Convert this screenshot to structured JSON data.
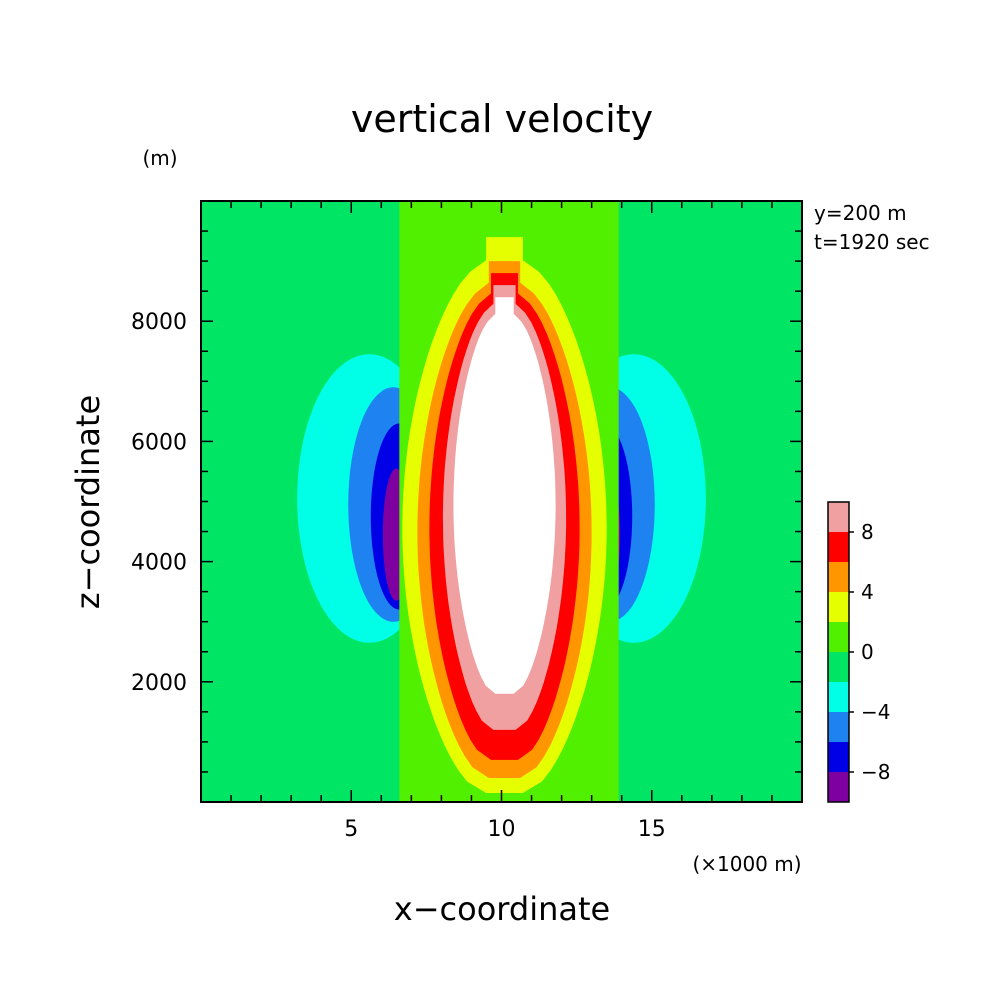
{
  "chart_data": {
    "type": "heatmap",
    "subtype": "filled-contour",
    "title": "vertical velocity",
    "xlabel": "x−coordinate",
    "ylabel": "z−coordinate",
    "x_unit": "(×1000 m)",
    "y_unit": "(m)",
    "annotations": [
      "y=200 m",
      "t=1920 sec"
    ],
    "xlim": [
      0,
      20
    ],
    "ylim": [
      0,
      10000
    ],
    "x_ticks": [
      5,
      10,
      15
    ],
    "x_tick_labels": [
      "5",
      "10",
      "15"
    ],
    "y_ticks": [
      2000,
      4000,
      6000,
      8000
    ],
    "y_tick_labels": [
      "2000",
      "4000",
      "6000",
      "8000"
    ],
    "grid": false,
    "legend_placement": "right",
    "colorbar": {
      "levels": [
        -10,
        -8,
        -6,
        -4,
        -2,
        0,
        2,
        4,
        6,
        8,
        10
      ],
      "tick_values": [
        -8,
        -4,
        0,
        4,
        8
      ],
      "tick_labels": [
        "−8",
        "−4",
        "0",
        "4",
        "8"
      ],
      "colors": [
        "#7f00a0",
        "#0000e6",
        "#1e82f0",
        "#00ffe6",
        "#00e664",
        "#50f000",
        "#e6ff00",
        "#ff9600",
        "#ff0000",
        "#f0a0a0"
      ]
    },
    "above_max_color": "#ffffff",
    "background_color": "#50f000",
    "regions": [
      {
        "band": -2,
        "kind": "lobe",
        "cx": 3.6,
        "cz": 5300,
        "rx": 3.9,
        "rz": 2750
      },
      {
        "band": -2,
        "kind": "lobe",
        "cx": 16.4,
        "cz": 5300,
        "rx": 3.9,
        "rz": 2750
      },
      {
        "band": -4,
        "kind": "lobe",
        "cx": 5.6,
        "cz": 5050,
        "rx": 2.4,
        "rz": 2400
      },
      {
        "band": -4,
        "kind": "lobe",
        "cx": 14.4,
        "cz": 5050,
        "rx": 2.4,
        "rz": 2400
      },
      {
        "band": -6,
        "kind": "lobe",
        "cx": 6.4,
        "cz": 4950,
        "rx": 1.5,
        "rz": 1950
      },
      {
        "band": -6,
        "kind": "lobe",
        "cx": 13.6,
        "cz": 4950,
        "rx": 1.5,
        "rz": 1950
      },
      {
        "band": -8,
        "kind": "lobe",
        "cx": 6.6,
        "cz": 4750,
        "rx": 0.95,
        "rz": 1550
      },
      {
        "band": -8,
        "kind": "lobe",
        "cx": 13.4,
        "cz": 4750,
        "rx": 0.95,
        "rz": 1550
      },
      {
        "band": -10,
        "kind": "lobe",
        "cx": 6.5,
        "cz": 4450,
        "rx": 0.45,
        "rz": 1100
      },
      {
        "band": -10,
        "kind": "lobe",
        "cx": 13.5,
        "cz": 4450,
        "rx": 0.45,
        "rz": 1100
      },
      {
        "band": 0,
        "kind": "column",
        "cx": 10.1,
        "x_min": 6.6,
        "x_max": 13.9,
        "z_min": 0,
        "z_max": 10000
      },
      {
        "band": 2,
        "kind": "plume",
        "cx": 10.1,
        "z_min": 150,
        "z_top": 9400,
        "half_width_max": 3.4
      },
      {
        "band": 4,
        "kind": "plume",
        "cx": 10.1,
        "z_min": 400,
        "z_top": 9000,
        "half_width_max": 2.9
      },
      {
        "band": 6,
        "kind": "plume",
        "cx": 10.1,
        "z_min": 700,
        "z_top": 8800,
        "half_width_max": 2.5
      },
      {
        "band": 8,
        "kind": "plume",
        "cx": 10.1,
        "z_min": 1200,
        "z_top": 8600,
        "half_width_max": 2.05
      },
      {
        "band": 10,
        "kind": "plume",
        "cx": 10.1,
        "z_min": 1800,
        "z_top": 8400,
        "half_width_max": 1.7
      }
    ]
  }
}
